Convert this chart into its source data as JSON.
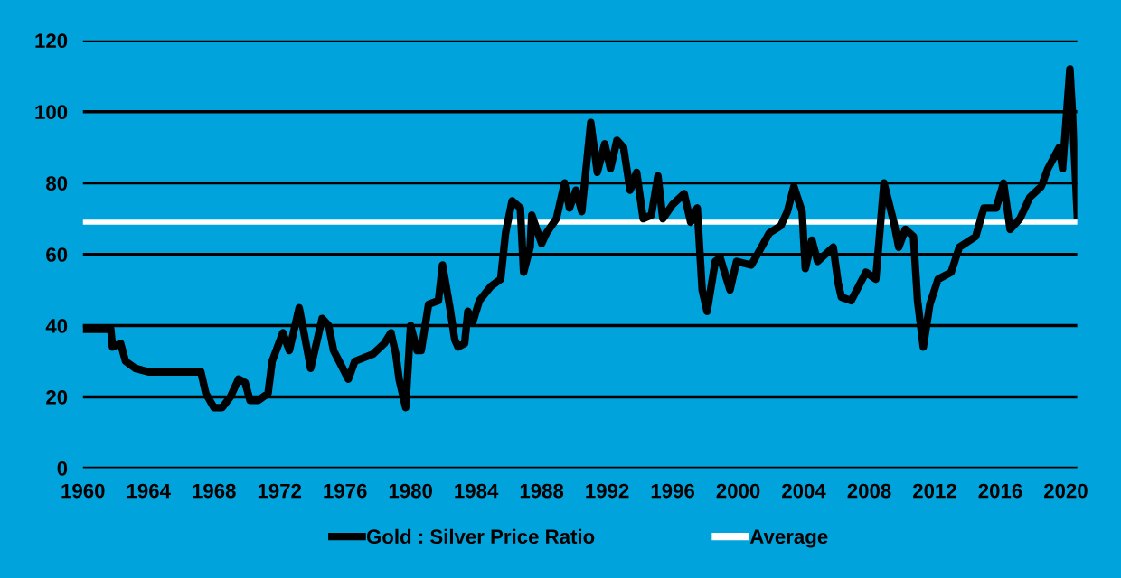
{
  "chart_data": {
    "type": "line",
    "x": [
      1960,
      1961.7,
      1961.8,
      1962.3,
      1962.6,
      1963.2,
      1964,
      1967.2,
      1967.5,
      1968,
      1968.5,
      1969,
      1969.5,
      1969.9,
      1970.2,
      1970.7,
      1971.3,
      1971.55,
      1972.2,
      1972.6,
      1973.2,
      1973.7,
      1973.9,
      1974.6,
      1975,
      1975.3,
      1976.2,
      1976.6,
      1977.7,
      1978.4,
      1978.8,
      1979.1,
      1979.3,
      1979.7,
      1980,
      1980.4,
      1980.65,
      1981.1,
      1981.7,
      1981.95,
      1982.4,
      1982.7,
      1982.9,
      1983.3,
      1983.5,
      1983.8,
      1984.2,
      1984.9,
      1985.5,
      1985.8,
      1986.2,
      1986.7,
      1986.9,
      1987.3,
      1987.4,
      1988,
      1988.3,
      1988.9,
      1989.4,
      1989.7,
      1990.1,
      1990.45,
      1991,
      1991.4,
      1991.85,
      1992.2,
      1992.6,
      1993,
      1993.4,
      1993.8,
      1994.2,
      1994.7,
      1995.1,
      1995.4,
      1996,
      1996.7,
      1997.1,
      1997.5,
      1997.8,
      1998.1,
      1998.6,
      1998.9,
      1999.5,
      1999.9,
      2000.8,
      2001.3,
      2001.9,
      2002.6,
      2003,
      2003.4,
      2003.9,
      2004.1,
      2004.5,
      2004.85,
      2005.8,
      2006.1,
      2006.3,
      2006.9,
      2007.8,
      2008.4,
      2008.9,
      2009.5,
      2009.8,
      2010.2,
      2010.7,
      2010.95,
      2011.3,
      2011.7,
      2012.2,
      2013,
      2013.5,
      2014.5,
      2015,
      2015.75,
      2016.2,
      2016.6,
      2017.2,
      2017.8,
      2018.5,
      2018.9,
      2019.6,
      2019.8,
      2020.25,
      2020.4,
      2020.7
    ],
    "series": [
      {
        "name": "Gold : Silver Price Ratio",
        "color": "#000000",
        "values": [
          39,
          39,
          34,
          35,
          30,
          28,
          27,
          27,
          21,
          17,
          17,
          20,
          25,
          24,
          19,
          19,
          21,
          30,
          38,
          33,
          45,
          33,
          28,
          42,
          40,
          33,
          25,
          30,
          32,
          35,
          38,
          32,
          25,
          17,
          40,
          33,
          33,
          46,
          47,
          57,
          45,
          36,
          34,
          35,
          44,
          41,
          47,
          51,
          53,
          66,
          75,
          73,
          55,
          62,
          71,
          63,
          66,
          70,
          80,
          73,
          78,
          72,
          97,
          83,
          91,
          84,
          92,
          90,
          78,
          83,
          70,
          71,
          82,
          70,
          74,
          77,
          69,
          73,
          50,
          44,
          58,
          59,
          50,
          58,
          57,
          61,
          66,
          68,
          72,
          79,
          72,
          56,
          64,
          58,
          62,
          52,
          48,
          47,
          55,
          53,
          80,
          69,
          62,
          67,
          65,
          47,
          34,
          46,
          53,
          55,
          62,
          65,
          73,
          73,
          80,
          67,
          70,
          76,
          79,
          84,
          90,
          84,
          112,
          100,
          71
        ]
      },
      {
        "name": "Average",
        "color": "#ffffff",
        "x": [
          1960,
          2020.7
        ],
        "values": [
          69,
          69
        ]
      }
    ],
    "xlim": [
      1960,
      2020.7
    ],
    "xticks": [
      1960,
      1964,
      1968,
      1972,
      1976,
      1980,
      1984,
      1988,
      1992,
      1996,
      2000,
      2004,
      2008,
      2012,
      2016,
      2020
    ],
    "ylim": [
      0,
      120
    ],
    "yticks": [
      0,
      20,
      40,
      60,
      80,
      100,
      120
    ],
    "grid": "y",
    "legend": "bottom",
    "line_style": "solid",
    "marker": "none"
  }
}
